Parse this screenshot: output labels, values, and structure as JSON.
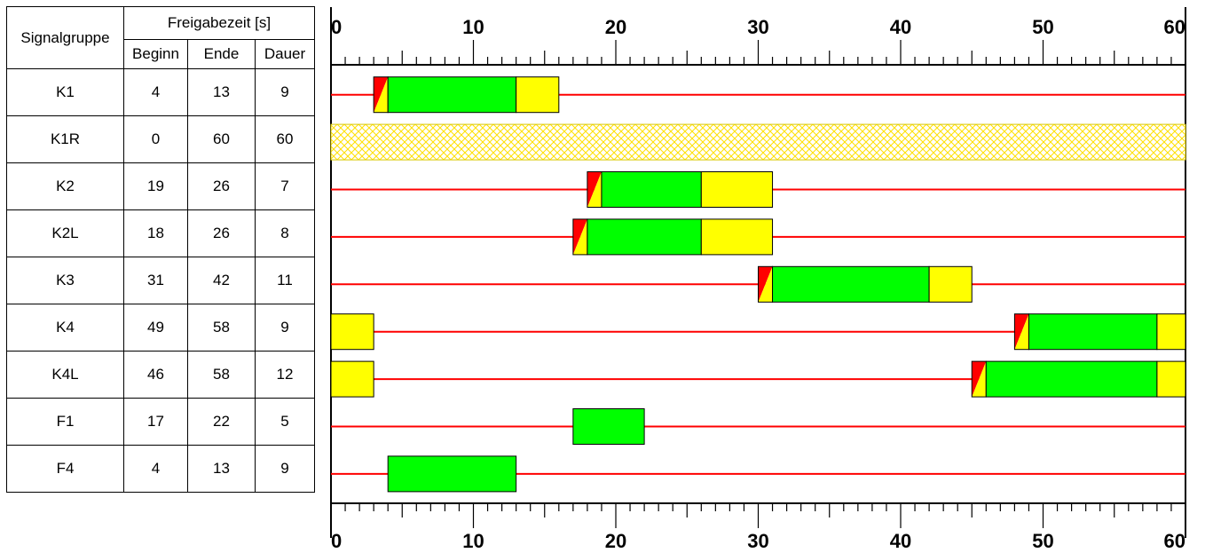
{
  "table": {
    "header_group": "Signalgruppe",
    "header_release": "Freigabezeit [s]",
    "header_begin": "Beginn",
    "header_end": "Ende",
    "header_duration": "Dauer",
    "rows": [
      {
        "name": "K1",
        "begin": "4",
        "end": "13",
        "duration": "9"
      },
      {
        "name": "K1R",
        "begin": "0",
        "end": "60",
        "duration": "60"
      },
      {
        "name": "K2",
        "begin": "19",
        "end": "26",
        "duration": "7"
      },
      {
        "name": "K2L",
        "begin": "18",
        "end": "26",
        "duration": "8"
      },
      {
        "name": "K3",
        "begin": "31",
        "end": "42",
        "duration": "11"
      },
      {
        "name": "K4",
        "begin": "49",
        "end": "58",
        "duration": "9"
      },
      {
        "name": "K4L",
        "begin": "46",
        "end": "58",
        "duration": "12"
      },
      {
        "name": "F1",
        "begin": "17",
        "end": "22",
        "duration": "5"
      },
      {
        "name": "F4",
        "begin": "4",
        "end": "13",
        "duration": "9"
      }
    ]
  },
  "timeline": {
    "cycle_s": 60,
    "tick_labels": [
      "0",
      "10",
      "20",
      "30",
      "40",
      "50",
      "60"
    ],
    "colors": {
      "red": "#ff0000",
      "green": "#00ff00",
      "yellow": "#ffff00",
      "hatch": "#ffff00"
    },
    "rows": [
      {
        "name": "K1",
        "segments": [
          {
            "color": "red_yellow",
            "from": 3,
            "to": 4
          },
          {
            "color": "green",
            "from": 4,
            "to": 13
          },
          {
            "color": "yellow",
            "from": 13,
            "to": 16
          }
        ]
      },
      {
        "name": "K1R",
        "segments": [
          {
            "color": "hatch",
            "from": 0,
            "to": 60
          }
        ]
      },
      {
        "name": "K2",
        "segments": [
          {
            "color": "red_yellow",
            "from": 18,
            "to": 19
          },
          {
            "color": "green",
            "from": 19,
            "to": 26
          },
          {
            "color": "yellow",
            "from": 26,
            "to": 31
          }
        ]
      },
      {
        "name": "K2L",
        "segments": [
          {
            "color": "red_yellow",
            "from": 17,
            "to": 18
          },
          {
            "color": "green",
            "from": 18,
            "to": 26
          },
          {
            "color": "yellow",
            "from": 26,
            "to": 31
          }
        ]
      },
      {
        "name": "K3",
        "segments": [
          {
            "color": "red_yellow",
            "from": 30,
            "to": 31
          },
          {
            "color": "green",
            "from": 31,
            "to": 42
          },
          {
            "color": "yellow",
            "from": 42,
            "to": 45
          }
        ]
      },
      {
        "name": "K4",
        "segments": [
          {
            "color": "yellow",
            "from": 0,
            "to": 3
          },
          {
            "color": "red_yellow",
            "from": 48,
            "to": 49
          },
          {
            "color": "green",
            "from": 49,
            "to": 58
          },
          {
            "color": "yellow",
            "from": 58,
            "to": 60
          }
        ]
      },
      {
        "name": "K4L",
        "segments": [
          {
            "color": "yellow",
            "from": 0,
            "to": 3
          },
          {
            "color": "red_yellow",
            "from": 45,
            "to": 46
          },
          {
            "color": "green",
            "from": 46,
            "to": 58
          },
          {
            "color": "yellow",
            "from": 58,
            "to": 60
          }
        ]
      },
      {
        "name": "F1",
        "segments": [
          {
            "color": "green",
            "from": 17,
            "to": 22
          }
        ]
      },
      {
        "name": "F4",
        "segments": [
          {
            "color": "green",
            "from": 4,
            "to": 13
          }
        ]
      }
    ]
  }
}
